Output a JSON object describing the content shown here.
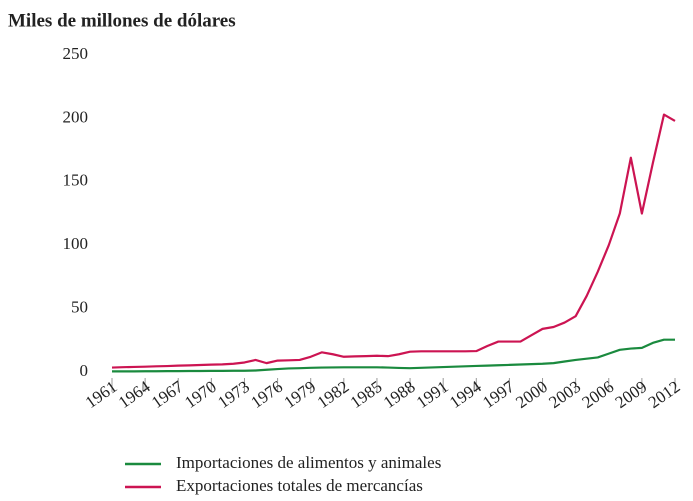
{
  "chart_data": {
    "type": "line",
    "title": "Miles de millones de dólares",
    "x": [
      1961,
      1962,
      1963,
      1964,
      1965,
      1966,
      1967,
      1968,
      1969,
      1970,
      1971,
      1972,
      1973,
      1974,
      1975,
      1976,
      1977,
      1978,
      1979,
      1980,
      1981,
      1982,
      1983,
      1984,
      1985,
      1986,
      1987,
      1988,
      1989,
      1990,
      1991,
      1992,
      1993,
      1994,
      1995,
      1996,
      1997,
      1998,
      1999,
      2000,
      2001,
      2002,
      2003,
      2004,
      2005,
      2006,
      2007,
      2008,
      2009,
      2010,
      2011,
      2012
    ],
    "series": [
      {
        "name": "Importaciones de alimentos y animales",
        "color": "#1a8a3e",
        "values": [
          0.5,
          0.5,
          0.5,
          0.6,
          0.6,
          0.7,
          0.7,
          0.8,
          0.8,
          0.9,
          0.9,
          1,
          1,
          1.2,
          1.8,
          2.3,
          2.8,
          3,
          3.3,
          3.5,
          3.6,
          3.7,
          3.7,
          3.7,
          3.7,
          3.5,
          3.2,
          3,
          3.3,
          3.6,
          3.9,
          4.2,
          4.5,
          4.8,
          5,
          5.3,
          5.6,
          5.9,
          6.2,
          6.5,
          7,
          8.3,
          9.5,
          10.5,
          11.5,
          14.5,
          17.5,
          18.5,
          19,
          23,
          25.5,
          25.5
        ]
      },
      {
        "name": "Exportaciones totales de mercancías",
        "color": "#cc1452",
        "values": [
          3.5,
          3.8,
          4,
          4.2,
          4.5,
          4.7,
          5,
          5.2,
          5.5,
          5.8,
          6,
          6.5,
          7.5,
          9.5,
          7,
          9,
          9.2,
          9.5,
          12,
          15.5,
          14,
          12,
          12.3,
          12.5,
          12.8,
          12.5,
          14,
          16,
          16.3,
          16.3,
          16.3,
          16.3,
          16.3,
          16.5,
          20.5,
          24,
          24,
          24,
          29,
          34,
          35.5,
          39,
          44,
          60,
          79,
          100,
          125,
          169,
          125,
          165,
          203,
          198
        ]
      }
    ],
    "xlim": [
      1961,
      2012
    ],
    "xticks": [
      1961,
      1964,
      1967,
      1970,
      1973,
      1976,
      1979,
      1982,
      1985,
      1988,
      1991,
      1994,
      1997,
      2000,
      2003,
      2006,
      2009,
      2012
    ],
    "ylim": [
      0,
      250
    ],
    "yticks": [
      0,
      50,
      100,
      150,
      200,
      250
    ],
    "legend": "bottom"
  }
}
